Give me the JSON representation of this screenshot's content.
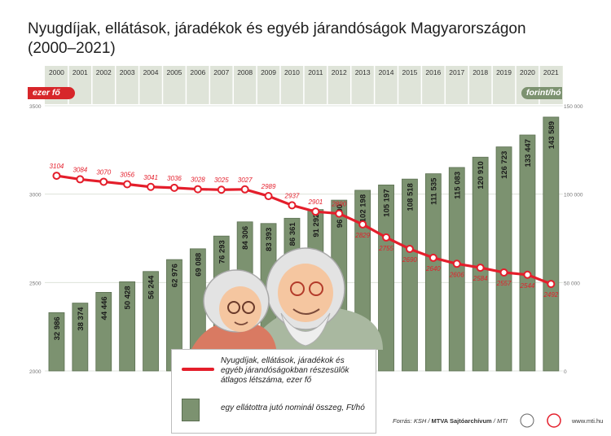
{
  "title_line1": "Nyugdíjak, ellátások, járadékok és egyéb járandóságok Magyarországon",
  "title_line2": "(2000–2021)",
  "left_unit": "ezer fő",
  "right_unit": "forint/hó",
  "source_prefix": "Forrás: KSH / ",
  "source_bold": "MTVA Sajtóarchívum",
  "source_suffix": " / MTI",
  "url": "www.mti.hu",
  "colors": {
    "bar": "#7c9270",
    "bar_stroke": "#5c7052",
    "line": "#e41e2b",
    "year_band": "#dfe4d9",
    "grid": "#d9ddd4"
  },
  "legend": {
    "line_label": "Nyugdíjak, ellátások, járadékok és egyéb járandóságokban részesülők átlagos létszáma, ezer fő",
    "bar_label": "egy ellátottra jutó nominál összeg, Ft/hó"
  },
  "chart_data": {
    "type": "bar",
    "categories": [
      "2000",
      "2001",
      "2002",
      "2003",
      "2004",
      "2005",
      "2006",
      "2007",
      "2008",
      "2009",
      "2010",
      "2011",
      "2012",
      "2013",
      "2014",
      "2015",
      "2016",
      "2017",
      "2018",
      "2019",
      "2020",
      "2021"
    ],
    "series": [
      {
        "name": "egy ellátottra jutó nominál összeg, Ft/hó",
        "type": "bar",
        "axis": "right",
        "values": [
          32986,
          38374,
          44446,
          50428,
          56244,
          62976,
          69088,
          76293,
          84306,
          83393,
          86361,
          91292,
          96600,
          102198,
          105197,
          108518,
          111535,
          115083,
          120910,
          126723,
          133447,
          143589
        ],
        "labels": [
          "32 986",
          "38 374",
          "44 446",
          "50 428",
          "56 244",
          "62 976",
          "69 088",
          "76 293",
          "84 306",
          "83 393",
          "86 361",
          "91 292",
          "96 600",
          "102 198",
          "105 197",
          "108 518",
          "111 535",
          "115 083",
          "120 910",
          "126 723",
          "133 447",
          "143 589"
        ]
      },
      {
        "name": "Nyugdíjak, ellátások, járadékok és egyéb járandóságokban részesülők átlagos létszáma, ezer fő",
        "type": "line",
        "axis": "left",
        "values": [
          3104,
          3084,
          3070,
          3056,
          3041,
          3036,
          3028,
          3025,
          3027,
          2989,
          2937,
          2901,
          2890,
          2829,
          2755,
          2690,
          2640,
          2606,
          2584,
          2557,
          2544,
          2492
        ]
      }
    ],
    "left_axis": {
      "ticks": [
        2000,
        2500,
        3000,
        3500
      ],
      "range": [
        2000,
        3500
      ]
    },
    "right_axis": {
      "ticks": [
        "0",
        "50 000",
        "100 000",
        "150 000"
      ],
      "range": [
        0,
        150000
      ]
    }
  }
}
